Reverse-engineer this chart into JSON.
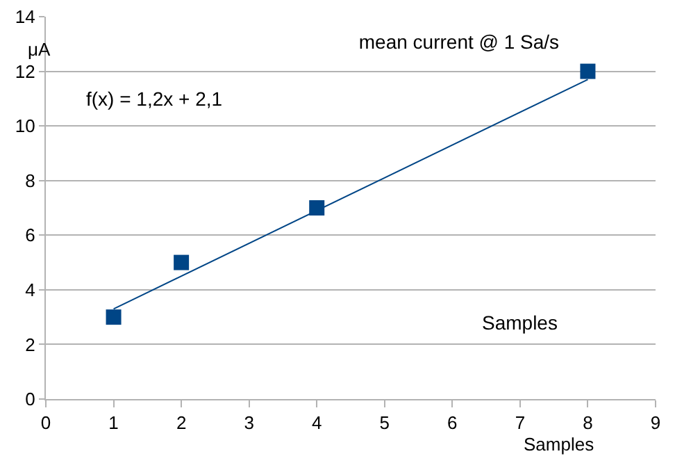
{
  "chart_data": {
    "type": "scatter",
    "title": "mean current @ 1 Sa/s",
    "xlabel": "Samples",
    "ylabel": "μA",
    "annotations": [
      "f(x) = 1,2x + 2,1",
      "Samples"
    ],
    "x": [
      1,
      2,
      4,
      8
    ],
    "series": [
      {
        "color": "#004586",
        "values": [
          3,
          5,
          7,
          12
        ],
        "marker": "square"
      },
      {
        "type": "line",
        "x": [
          1,
          8
        ],
        "color": "#004586",
        "values": [
          3.3,
          11.7
        ],
        "marker": "none",
        "line_style": "solid"
      }
    ],
    "xlim": [
      0,
      9
    ],
    "ylim": [
      0,
      14
    ],
    "xticks": [
      0,
      1,
      2,
      3,
      4,
      5,
      6,
      7,
      8,
      9
    ],
    "yticks": [
      0,
      2,
      4,
      6,
      8,
      10,
      12,
      14
    ],
    "grid": "y"
  }
}
